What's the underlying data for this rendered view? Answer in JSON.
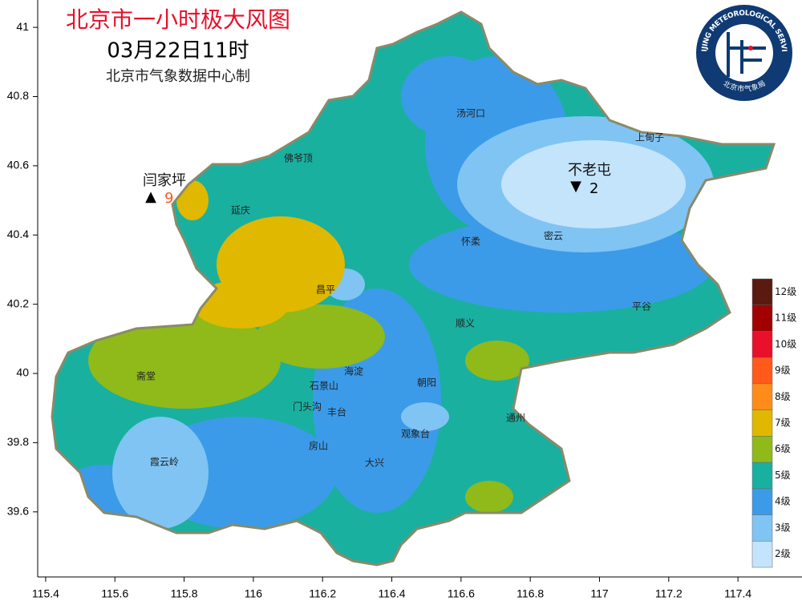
{
  "header": {
    "title": "北京市一小时极大风图",
    "datetime": "03月22日11时",
    "source": "北京市气象数据中心制"
  },
  "axes": {
    "xlim": [
      115.377,
      117.585
    ],
    "ylim": [
      39.412,
      41.079
    ],
    "xticks": [
      115.4,
      115.6,
      115.8,
      116,
      116.2,
      116.4,
      116.6,
      116.8,
      117,
      117.2,
      117.4
    ],
    "yticks": [
      41,
      40.8,
      40.6,
      40.4,
      40.2,
      40,
      39.8,
      39.6
    ]
  },
  "logo": {
    "text_en": "BEIJING METEOROLOGICAL SERVICE",
    "text_cn": "北京市气象局"
  },
  "stations": [
    {
      "name": "闫家坪",
      "symbol": "▲",
      "value": 9
    },
    {
      "name": "不老屯",
      "symbol": "▼",
      "value": 2
    }
  ],
  "places": [
    "汤河口",
    "上甸子",
    "佛爷顶",
    "延庆",
    "密云",
    "怀柔",
    "昌平",
    "平谷",
    "顺义",
    "斋堂",
    "海淀",
    "石景山",
    "朝阳",
    "门头沟",
    "丰台",
    "通州",
    "观象台",
    "房山",
    "大兴",
    "霞云岭"
  ],
  "legend": [
    {
      "label": "12级",
      "color": "#5a1a10"
    },
    {
      "label": "11级",
      "color": "#a00000"
    },
    {
      "label": "10级",
      "color": "#e8102a"
    },
    {
      "label": "9级",
      "color": "#ff5a1a"
    },
    {
      "label": "8级",
      "color": "#ff8c1a"
    },
    {
      "label": "7级",
      "color": "#e0b800"
    },
    {
      "label": "6级",
      "color": "#8fba1a"
    },
    {
      "label": "5级",
      "color": "#19b0a0"
    },
    {
      "label": "4级",
      "color": "#3c9be8"
    },
    {
      "label": "3级",
      "color": "#80c4f4"
    },
    {
      "label": "2级",
      "color": "#c4e4fc"
    }
  ]
}
